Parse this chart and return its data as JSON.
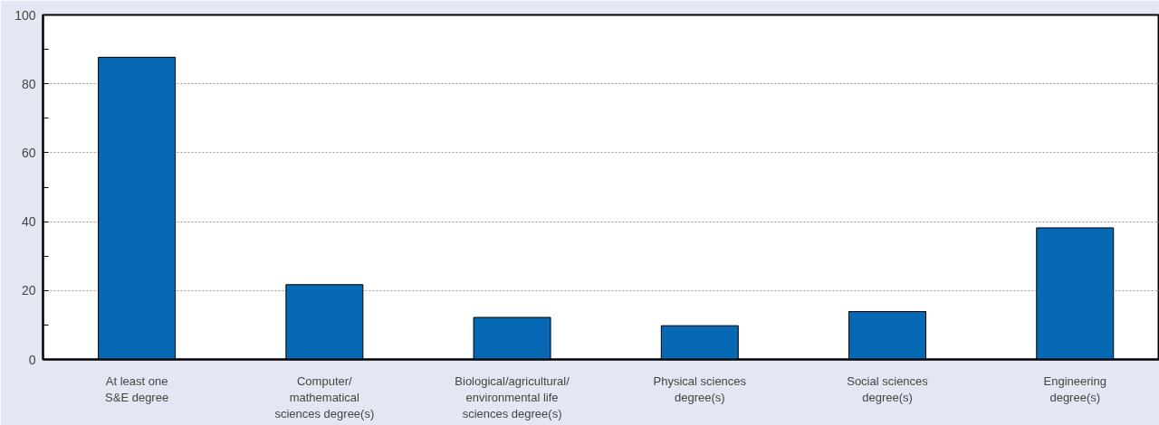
{
  "chart_data": {
    "type": "bar",
    "categories": [
      "At least one\nS&E degree",
      "Computer/\nmathematical\nsciences degree(s)",
      "Biological/agricultural/\nenvironmental life\nsciences degree(s)",
      "Physical sciences\ndegree(s)",
      "Social sciences\ndegree(s)",
      "Engineering\ndegree(s)"
    ],
    "values": [
      87.7,
      21.7,
      12.2,
      9.8,
      13.9,
      38.2
    ],
    "color": "#0769b4",
    "ylim": [
      0,
      100
    ],
    "yticks": [
      0,
      {
        "value": 10,
        "label": null
      },
      20,
      {
        "value": 30,
        "label": null
      },
      40,
      {
        "value": 50,
        "label": null
      },
      60,
      {
        "value": 70,
        "label": null
      },
      80,
      {
        "value": 90,
        "label": null
      },
      100
    ],
    "grid": "y"
  }
}
